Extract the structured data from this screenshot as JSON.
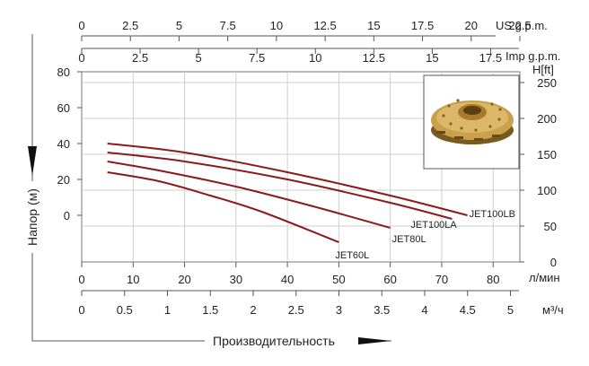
{
  "chart_data": {
    "type": "line",
    "xlabel": "Производительность",
    "ylabel": "Напор (м)",
    "left_axis": {
      "ticks": [
        "80",
        "60",
        "40",
        "20",
        "0"
      ],
      "values": [
        80,
        60,
        40,
        20,
        0
      ]
    },
    "right_axis": {
      "unit": "H[ft]",
      "ticks": [
        "250",
        "200",
        "150",
        "100",
        "50",
        "0"
      ],
      "values": [
        250,
        200,
        150,
        100,
        50,
        0
      ]
    },
    "x_axes": [
      {
        "unit": "US g.p.m.",
        "ticks": [
          "0",
          "2.5",
          "5",
          "7.5",
          "10",
          "12.5",
          "15",
          "17.5",
          "20",
          "22.5"
        ],
        "values": [
          0,
          2.5,
          5,
          7.5,
          10,
          12.5,
          15,
          17.5,
          20,
          22.5
        ],
        "max": 22.5
      },
      {
        "unit": "Imp g.p.m.",
        "ticks": [
          "0",
          "2.5",
          "5",
          "7.5",
          "10",
          "12.5",
          "15",
          "17.5"
        ],
        "values": [
          0,
          2.5,
          5,
          7.5,
          10,
          12.5,
          15,
          17.5
        ],
        "max": 18.75
      },
      {
        "unit": "л/мин",
        "ticks": [
          "0",
          "10",
          "20",
          "30",
          "40",
          "50",
          "60",
          "70",
          "80"
        ],
        "values": [
          0,
          10,
          20,
          30,
          40,
          50,
          60,
          70,
          80
        ],
        "max": 85.2
      },
      {
        "unit": "м³/ч",
        "ticks": [
          "0",
          "0.5",
          "1",
          "1.5",
          "2",
          "2.5",
          "3",
          "3.5",
          "4",
          "4.5",
          "5"
        ],
        "values": [
          0,
          0.5,
          1,
          1.5,
          2,
          2.5,
          3,
          3.5,
          4,
          4.5,
          5
        ],
        "max": 5.11
      }
    ],
    "series": [
      {
        "name": "JET100LB",
        "x_lpm": [
          5,
          20,
          40,
          60,
          75
        ],
        "y_m": [
          40,
          35,
          24,
          11,
          0
        ]
      },
      {
        "name": "JET100LA",
        "x_lpm": [
          5,
          20,
          40,
          60,
          72
        ],
        "y_m": [
          35,
          30,
          20,
          7,
          -2
        ]
      },
      {
        "name": "JET80L",
        "x_lpm": [
          5,
          15,
          30,
          45,
          60
        ],
        "y_m": [
          30,
          25,
          16,
          5,
          -7
        ]
      },
      {
        "name": "JET60L",
        "x_lpm": [
          5,
          15,
          25,
          35,
          50
        ],
        "y_m": [
          24,
          19,
          11,
          2,
          -15
        ]
      }
    ],
    "line_color": "#8b1a1a"
  }
}
